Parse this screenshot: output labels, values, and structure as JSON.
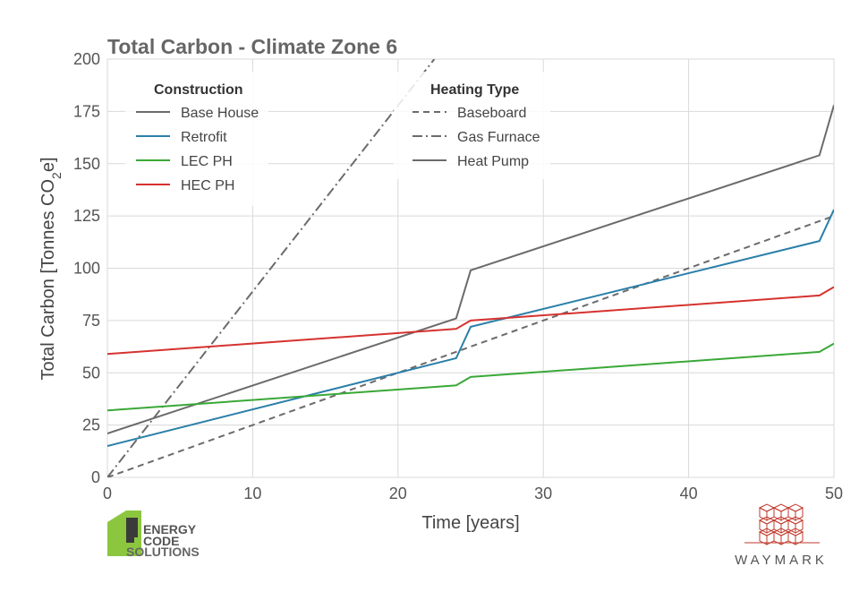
{
  "chart_data": {
    "type": "line",
    "title": "Total Carbon - Climate Zone 6",
    "xlabel": "Time [years]",
    "ylabel": "Total Carbon [Tonnes CO2e]",
    "xlim": [
      0,
      50
    ],
    "ylim": [
      0,
      200
    ],
    "xticks": [
      0,
      10,
      20,
      30,
      40,
      50
    ],
    "yticks": [
      0,
      25,
      50,
      75,
      100,
      125,
      150,
      175,
      200
    ],
    "grid": true,
    "legend": {
      "construction_title": "Construction",
      "construction_items": [
        {
          "label": "Base House",
          "color": "#6b6b6b"
        },
        {
          "label": "Retrofit",
          "color": "#2a7fa8"
        },
        {
          "label": "LEC PH",
          "color": "#3aa837"
        },
        {
          "label": "HEC PH",
          "color": "#d6322f"
        }
      ],
      "heating_title": "Heating Type",
      "heating_items": [
        {
          "label": "Baseboard",
          "style": "dashed"
        },
        {
          "label": "Gas Furnace",
          "style": "dashdot"
        },
        {
          "label": "Heat Pump",
          "style": "solid"
        }
      ]
    },
    "series": [
      {
        "construction": "Base House",
        "heating": "Heat Pump",
        "color": "#6b6b6b",
        "style": "solid",
        "points": [
          [
            0,
            21
          ],
          [
            24,
            76
          ],
          [
            25,
            99
          ],
          [
            49,
            154
          ],
          [
            50,
            178
          ]
        ]
      },
      {
        "construction": "Base House",
        "heating": "Baseboard",
        "color": "#6b6b6b",
        "style": "dashed",
        "points": [
          [
            0,
            0
          ],
          [
            50,
            125
          ]
        ]
      },
      {
        "construction": "Base House",
        "heating": "Gas Furnace",
        "color": "#6b6b6b",
        "style": "dashdot",
        "points": [
          [
            0,
            0
          ],
          [
            22.5,
            200
          ]
        ]
      },
      {
        "construction": "Retrofit",
        "heating": "Heat Pump",
        "color": "#2a7fa8",
        "style": "solid",
        "points": [
          [
            0,
            15
          ],
          [
            24,
            57
          ],
          [
            25,
            72
          ],
          [
            49,
            113
          ],
          [
            50,
            128
          ]
        ]
      },
      {
        "construction": "LEC PH",
        "heating": "Heat Pump",
        "color": "#3aa837",
        "style": "solid",
        "points": [
          [
            0,
            32
          ],
          [
            24,
            44
          ],
          [
            25,
            48
          ],
          [
            49,
            60
          ],
          [
            50,
            64
          ]
        ]
      },
      {
        "construction": "HEC PH",
        "heating": "Heat Pump",
        "color": "#d6322f",
        "style": "solid",
        "points": [
          [
            0,
            59
          ],
          [
            24,
            71
          ],
          [
            25,
            75
          ],
          [
            49,
            87
          ],
          [
            50,
            91
          ]
        ]
      }
    ]
  },
  "logos": {
    "energy_code_line1": "ENERGY",
    "energy_code_line2": "CODE",
    "energy_code_line3": "SOLUTIONS",
    "waymark": "WAYMARK"
  }
}
